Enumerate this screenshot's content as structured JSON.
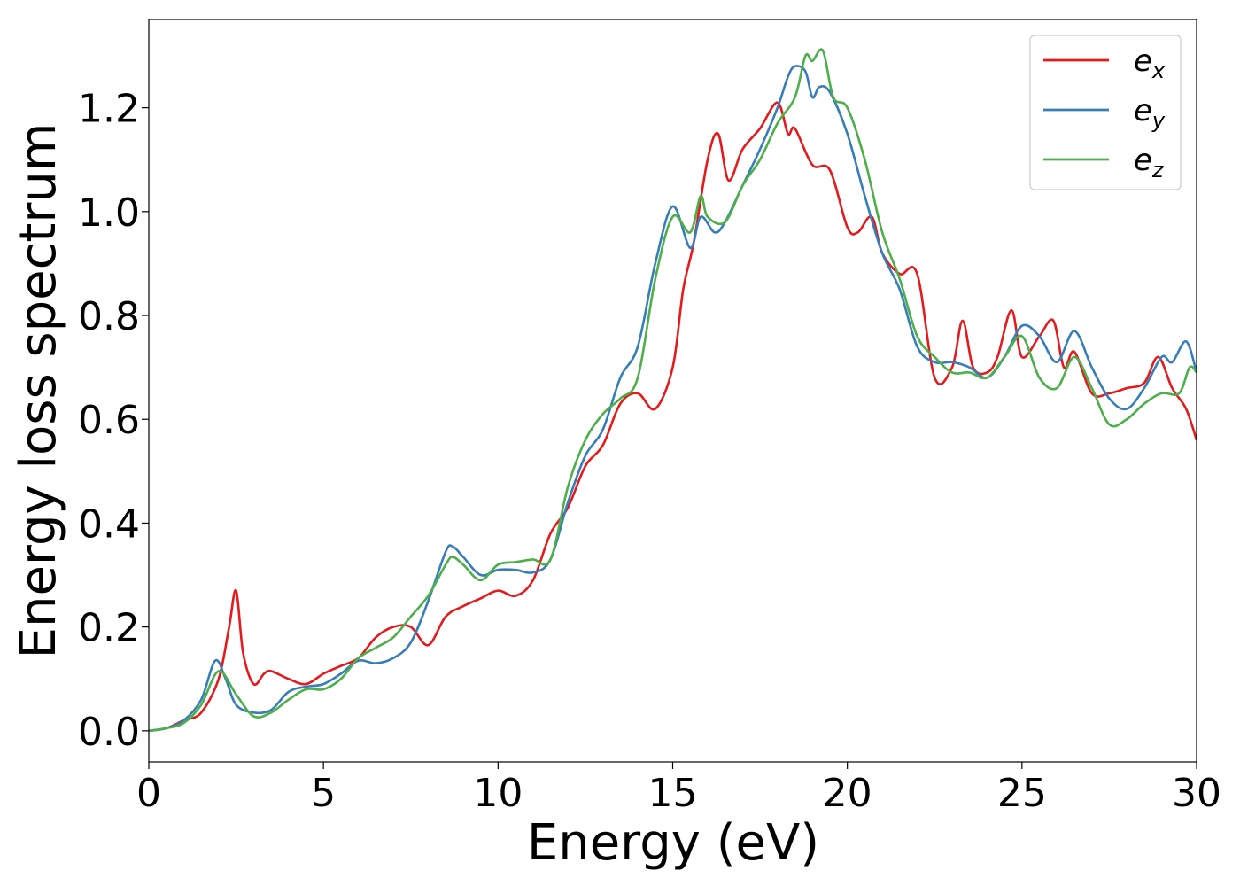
{
  "chart_data": {
    "type": "line",
    "xlabel": "Energy (eV)",
    "ylabel": "Energy loss spectrum",
    "xlim": [
      0,
      30
    ],
    "ylim": [
      -0.06,
      1.37
    ],
    "xticks": [
      0,
      5,
      10,
      15,
      20,
      25,
      30
    ],
    "xtick_labels": [
      "0",
      "5",
      "10",
      "15",
      "20",
      "25",
      "30"
    ],
    "yticks": [
      0.0,
      0.2,
      0.4,
      0.6,
      0.8,
      1.0,
      1.2
    ],
    "ytick_labels": [
      "0.0",
      "0.2",
      "0.4",
      "0.6",
      "0.8",
      "1.0",
      "1.2"
    ],
    "grid": false,
    "legend_position": "top-right",
    "series": [
      {
        "name": "e_x",
        "label_base": "e",
        "label_sub": "x",
        "color": "#e41a1c",
        "x": [
          0,
          0.5,
          1,
          1.5,
          2,
          2.3,
          2.5,
          2.7,
          3,
          3.3,
          3.5,
          4,
          4.5,
          5,
          5.5,
          6,
          6.5,
          7,
          7.5,
          8,
          8.5,
          9,
          9.5,
          10,
          10.5,
          11,
          11.5,
          12,
          12.5,
          13,
          13.5,
          14,
          14.5,
          15,
          15.3,
          15.6,
          16,
          16.3,
          16.6,
          17,
          17.5,
          18,
          18.3,
          18.5,
          19,
          19.5,
          20,
          20.3,
          20.7,
          21,
          21.5,
          22,
          22.5,
          23,
          23.3,
          23.6,
          24,
          24.3,
          24.7,
          25,
          25.5,
          25.9,
          26.2,
          26.5,
          27,
          27.5,
          28,
          28.5,
          28.9,
          29.3,
          29.7,
          30
        ],
        "y": [
          0,
          0.005,
          0.02,
          0.035,
          0.1,
          0.2,
          0.27,
          0.15,
          0.09,
          0.11,
          0.115,
          0.1,
          0.09,
          0.11,
          0.125,
          0.14,
          0.18,
          0.2,
          0.2,
          0.165,
          0.22,
          0.24,
          0.255,
          0.27,
          0.26,
          0.29,
          0.38,
          0.43,
          0.51,
          0.55,
          0.63,
          0.65,
          0.62,
          0.7,
          0.85,
          0.94,
          1.1,
          1.15,
          1.06,
          1.12,
          1.16,
          1.21,
          1.15,
          1.16,
          1.09,
          1.08,
          0.97,
          0.96,
          0.99,
          0.92,
          0.88,
          0.88,
          0.68,
          0.7,
          0.79,
          0.7,
          0.69,
          0.72,
          0.81,
          0.72,
          0.76,
          0.79,
          0.7,
          0.73,
          0.65,
          0.65,
          0.66,
          0.67,
          0.72,
          0.66,
          0.62,
          0.56
        ]
      },
      {
        "name": "e_y",
        "label_base": "e",
        "label_sub": "y",
        "color": "#377eb8",
        "x": [
          0,
          0.5,
          1,
          1.5,
          1.9,
          2.2,
          2.5,
          3,
          3.5,
          4,
          4.5,
          5,
          5.5,
          6,
          6.5,
          7,
          7.5,
          8,
          8.5,
          8.7,
          9,
          9.5,
          10,
          10.5,
          11,
          11.5,
          12,
          12.5,
          13,
          13.5,
          14,
          14.5,
          15,
          15.5,
          15.8,
          16.2,
          16.5,
          17,
          17.5,
          18,
          18.3,
          18.5,
          18.8,
          19,
          19.2,
          19.5,
          20,
          20.5,
          21,
          21.5,
          22,
          22.5,
          23,
          23.5,
          24,
          24.5,
          25,
          25.5,
          26,
          26.5,
          27,
          27.5,
          28,
          28.5,
          29,
          29.3,
          29.7,
          30
        ],
        "y": [
          0,
          0.005,
          0.02,
          0.06,
          0.135,
          0.1,
          0.05,
          0.035,
          0.04,
          0.075,
          0.085,
          0.09,
          0.11,
          0.135,
          0.13,
          0.14,
          0.17,
          0.25,
          0.345,
          0.355,
          0.335,
          0.3,
          0.31,
          0.31,
          0.305,
          0.33,
          0.44,
          0.53,
          0.58,
          0.68,
          0.74,
          0.9,
          1.01,
          0.93,
          0.99,
          0.96,
          0.98,
          1.05,
          1.12,
          1.2,
          1.26,
          1.28,
          1.27,
          1.22,
          1.24,
          1.23,
          1.15,
          1.03,
          0.92,
          0.85,
          0.74,
          0.71,
          0.71,
          0.7,
          0.68,
          0.72,
          0.78,
          0.76,
          0.71,
          0.77,
          0.7,
          0.64,
          0.62,
          0.66,
          0.72,
          0.71,
          0.75,
          0.69
        ]
      },
      {
        "name": "e_z",
        "label_base": "e",
        "label_sub": "z",
        "color": "#4daf4a",
        "x": [
          0,
          0.5,
          1,
          1.5,
          2,
          2.5,
          3,
          3.5,
          4,
          4.5,
          5,
          5.5,
          6,
          6.5,
          7,
          7.5,
          8,
          8.5,
          8.7,
          9,
          9.5,
          10,
          10.5,
          11,
          11.5,
          12,
          12.5,
          13,
          13.5,
          14,
          14.5,
          15,
          15.5,
          15.8,
          16,
          16.5,
          17,
          17.5,
          18,
          18.5,
          18.8,
          19,
          19.3,
          19.6,
          20,
          20.5,
          21,
          21.5,
          22,
          22.5,
          23,
          23.5,
          24,
          24.5,
          25,
          25.5,
          26,
          26.5,
          27,
          27.5,
          28,
          28.5,
          29,
          29.5,
          29.8,
          30
        ],
        "y": [
          0,
          0.005,
          0.015,
          0.05,
          0.115,
          0.07,
          0.028,
          0.035,
          0.06,
          0.08,
          0.08,
          0.1,
          0.14,
          0.16,
          0.18,
          0.22,
          0.26,
          0.32,
          0.335,
          0.32,
          0.29,
          0.32,
          0.325,
          0.33,
          0.33,
          0.47,
          0.56,
          0.61,
          0.64,
          0.68,
          0.87,
          0.99,
          0.96,
          1.03,
          0.99,
          0.98,
          1.05,
          1.1,
          1.17,
          1.22,
          1.3,
          1.29,
          1.31,
          1.22,
          1.2,
          1.1,
          0.96,
          0.87,
          0.76,
          0.72,
          0.69,
          0.69,
          0.68,
          0.72,
          0.76,
          0.68,
          0.66,
          0.72,
          0.66,
          0.59,
          0.6,
          0.63,
          0.65,
          0.65,
          0.7,
          0.69
        ]
      }
    ]
  }
}
